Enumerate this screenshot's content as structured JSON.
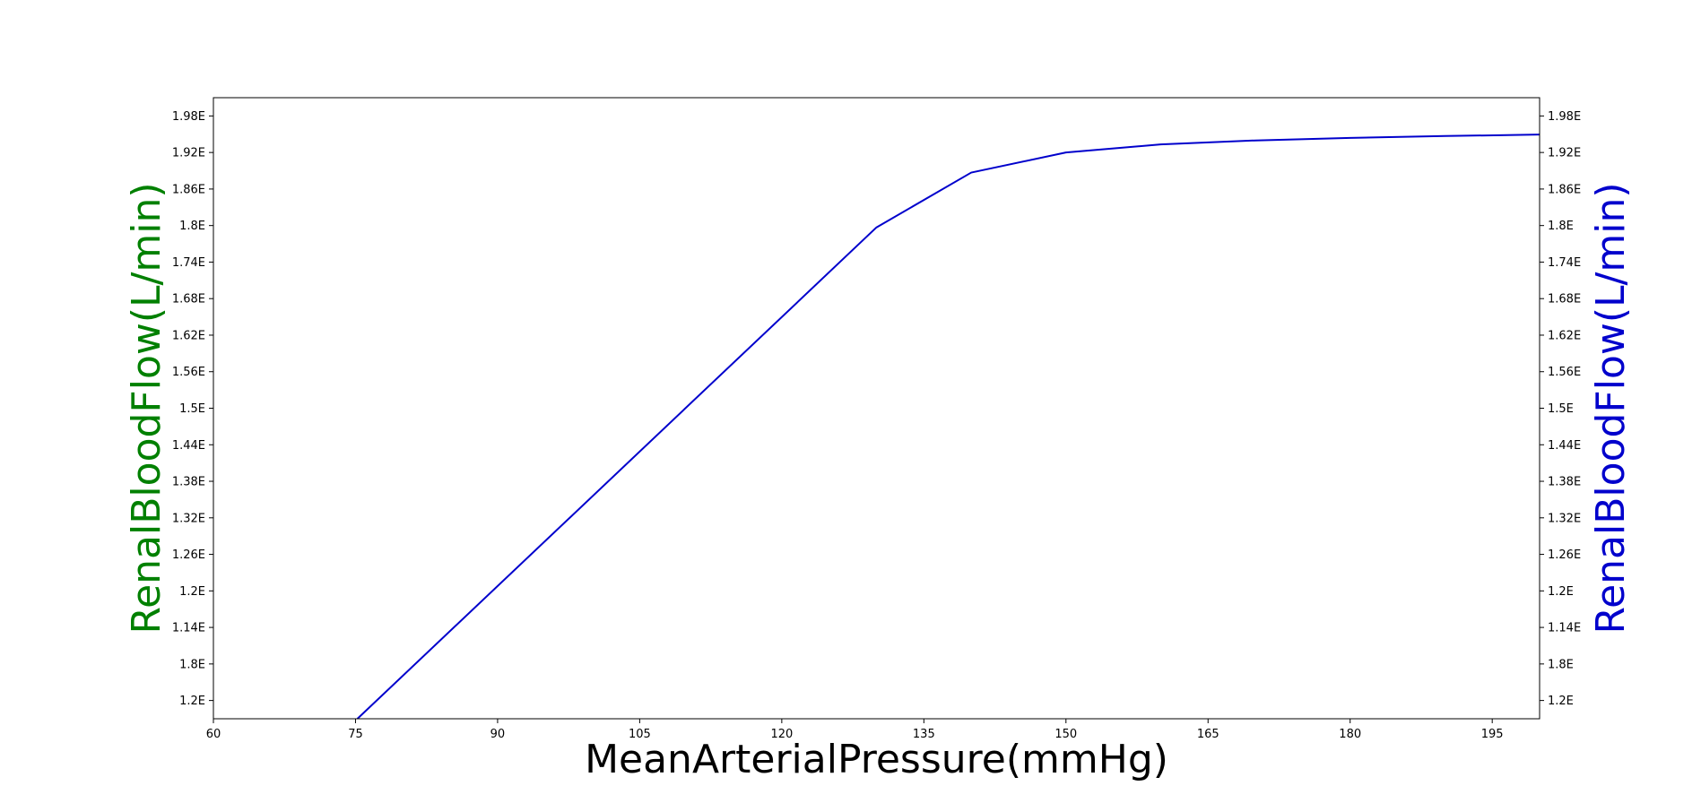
{
  "chart_data": {
    "type": "line",
    "title": "",
    "xlabel": "MeanArterialPressure(mmHg)",
    "ylabel_left": "RenalBloodFlow(L/min)",
    "ylabel_right": "RenalBloodFlow(L/min)",
    "xlim": [
      60,
      200
    ],
    "ylim": [
      0,
      17
    ],
    "x_ticks": [
      60,
      75,
      90,
      105,
      120,
      135,
      150,
      165,
      180,
      195
    ],
    "y_tick_positions": [
      0.5,
      1.5,
      2.5,
      3.5,
      4.5,
      5.5,
      6.5,
      7.5,
      8.5,
      9.5,
      10.5,
      11.5,
      12.5,
      13.5,
      14.5,
      15.5,
      16.5
    ],
    "y_tick_labels": [
      "1.2E",
      "1.8E",
      "1.14E",
      "1.2E",
      "1.26E",
      "1.32E",
      "1.38E",
      "1.44E",
      "1.5E",
      "1.56E",
      "1.62E",
      "1.68E",
      "1.74E",
      "1.8E",
      "1.86E",
      "1.92E",
      "1.98E"
    ],
    "grid": false,
    "legend": "none",
    "series": [
      {
        "color": "#0000cc",
        "x": [
          75.2,
          130,
          140,
          150,
          160,
          170,
          180,
          190,
          200
        ],
        "y": [
          0,
          13.45,
          14.95,
          15.5,
          15.72,
          15.83,
          15.9,
          15.95,
          15.99
        ]
      }
    ],
    "colors": {
      "left_ylabel": "#008000",
      "right_ylabel": "#0000cc",
      "line": "#0000cc"
    }
  }
}
